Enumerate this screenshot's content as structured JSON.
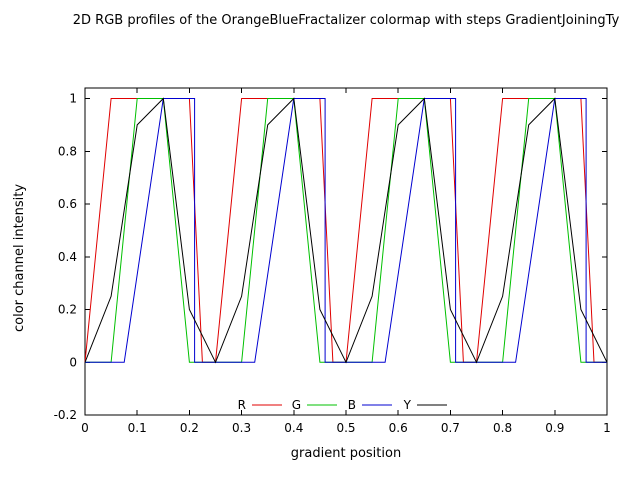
{
  "chart": {
    "title": "2D RGB profiles of the OrangeBlueFractalizer colormap with steps GradientJoiningTy",
    "xlabel": "gradient position",
    "ylabel": "color channel intensity"
  },
  "chart_data": {
    "type": "line",
    "title": "2D RGB profiles of the OrangeBlueFractalizer colormap with steps GradientJoiningTy",
    "xlabel": "gradient position",
    "ylabel": "color channel intensity",
    "xlim": [
      0,
      1
    ],
    "ylim": [
      -0.2,
      1.04
    ],
    "grid": false,
    "xticks": {
      "values": [
        0,
        0.1,
        0.2,
        0.3,
        0.4,
        0.5,
        0.6,
        0.7,
        0.8,
        0.9,
        1
      ],
      "labels": [
        "0",
        "0.1",
        "0.2",
        "0.3",
        "0.4",
        "0.5",
        "0.6",
        "0.7",
        "0.8",
        "0.9",
        "1"
      ]
    },
    "yticks": {
      "values": [
        -0.2,
        0,
        0.2,
        0.4,
        0.6,
        0.8,
        1
      ],
      "labels": [
        "-0.2",
        "0",
        "0.2",
        "0.4",
        "0.6",
        "0.8",
        "1"
      ]
    },
    "legend": {
      "position": "bottom-center",
      "items": [
        {
          "label": "R",
          "color": "#e00000"
        },
        {
          "label": "G",
          "color": "#00c000"
        },
        {
          "label": "B",
          "color": "#0000d0"
        },
        {
          "label": "Y",
          "color": "#000000"
        }
      ]
    },
    "series": [
      {
        "name": "R",
        "color": "#e00000",
        "points": [
          [
            0,
            0
          ],
          [
            0.05,
            1
          ],
          [
            0.2,
            1
          ],
          [
            0.225,
            0
          ],
          [
            0.25,
            0
          ],
          [
            0.3,
            1
          ],
          [
            0.45,
            1
          ],
          [
            0.475,
            0
          ],
          [
            0.5,
            0
          ],
          [
            0.55,
            1
          ],
          [
            0.7,
            1
          ],
          [
            0.725,
            0
          ],
          [
            0.75,
            0
          ],
          [
            0.8,
            1
          ],
          [
            0.95,
            1
          ],
          [
            0.975,
            0
          ],
          [
            1,
            0
          ]
        ]
      },
      {
        "name": "G",
        "color": "#00c000",
        "points": [
          [
            0,
            0
          ],
          [
            0.05,
            0
          ],
          [
            0.1,
            1
          ],
          [
            0.15,
            1
          ],
          [
            0.2,
            0
          ],
          [
            0.3,
            0
          ],
          [
            0.35,
            1
          ],
          [
            0.4,
            1
          ],
          [
            0.45,
            0
          ],
          [
            0.55,
            0
          ],
          [
            0.6,
            1
          ],
          [
            0.65,
            1
          ],
          [
            0.7,
            0
          ],
          [
            0.8,
            0
          ],
          [
            0.85,
            1
          ],
          [
            0.9,
            1
          ],
          [
            0.95,
            0
          ],
          [
            1,
            0
          ]
        ]
      },
      {
        "name": "B",
        "color": "#0000d0",
        "points": [
          [
            0,
            0
          ],
          [
            0.075,
            0
          ],
          [
            0.15,
            1
          ],
          [
            0.21,
            1
          ],
          [
            0.21,
            0
          ],
          [
            0.325,
            0
          ],
          [
            0.4,
            1
          ],
          [
            0.46,
            1
          ],
          [
            0.46,
            0
          ],
          [
            0.575,
            0
          ],
          [
            0.65,
            1
          ],
          [
            0.71,
            1
          ],
          [
            0.71,
            0
          ],
          [
            0.825,
            0
          ],
          [
            0.9,
            1
          ],
          [
            0.96,
            1
          ],
          [
            0.96,
            0
          ],
          [
            1,
            0
          ]
        ]
      },
      {
        "name": "Y",
        "color": "#000000",
        "points": [
          [
            0,
            0
          ],
          [
            0.05,
            0.25
          ],
          [
            0.1,
            0.9
          ],
          [
            0.15,
            1
          ],
          [
            0.2,
            0.2
          ],
          [
            0.25,
            0
          ],
          [
            0.3,
            0.25
          ],
          [
            0.35,
            0.9
          ],
          [
            0.4,
            1
          ],
          [
            0.45,
            0.2
          ],
          [
            0.5,
            0
          ],
          [
            0.55,
            0.25
          ],
          [
            0.6,
            0.9
          ],
          [
            0.65,
            1
          ],
          [
            0.7,
            0.2
          ],
          [
            0.75,
            0
          ],
          [
            0.8,
            0.25
          ],
          [
            0.85,
            0.9
          ],
          [
            0.9,
            1
          ],
          [
            0.95,
            0.2
          ],
          [
            1,
            0
          ]
        ]
      }
    ]
  }
}
